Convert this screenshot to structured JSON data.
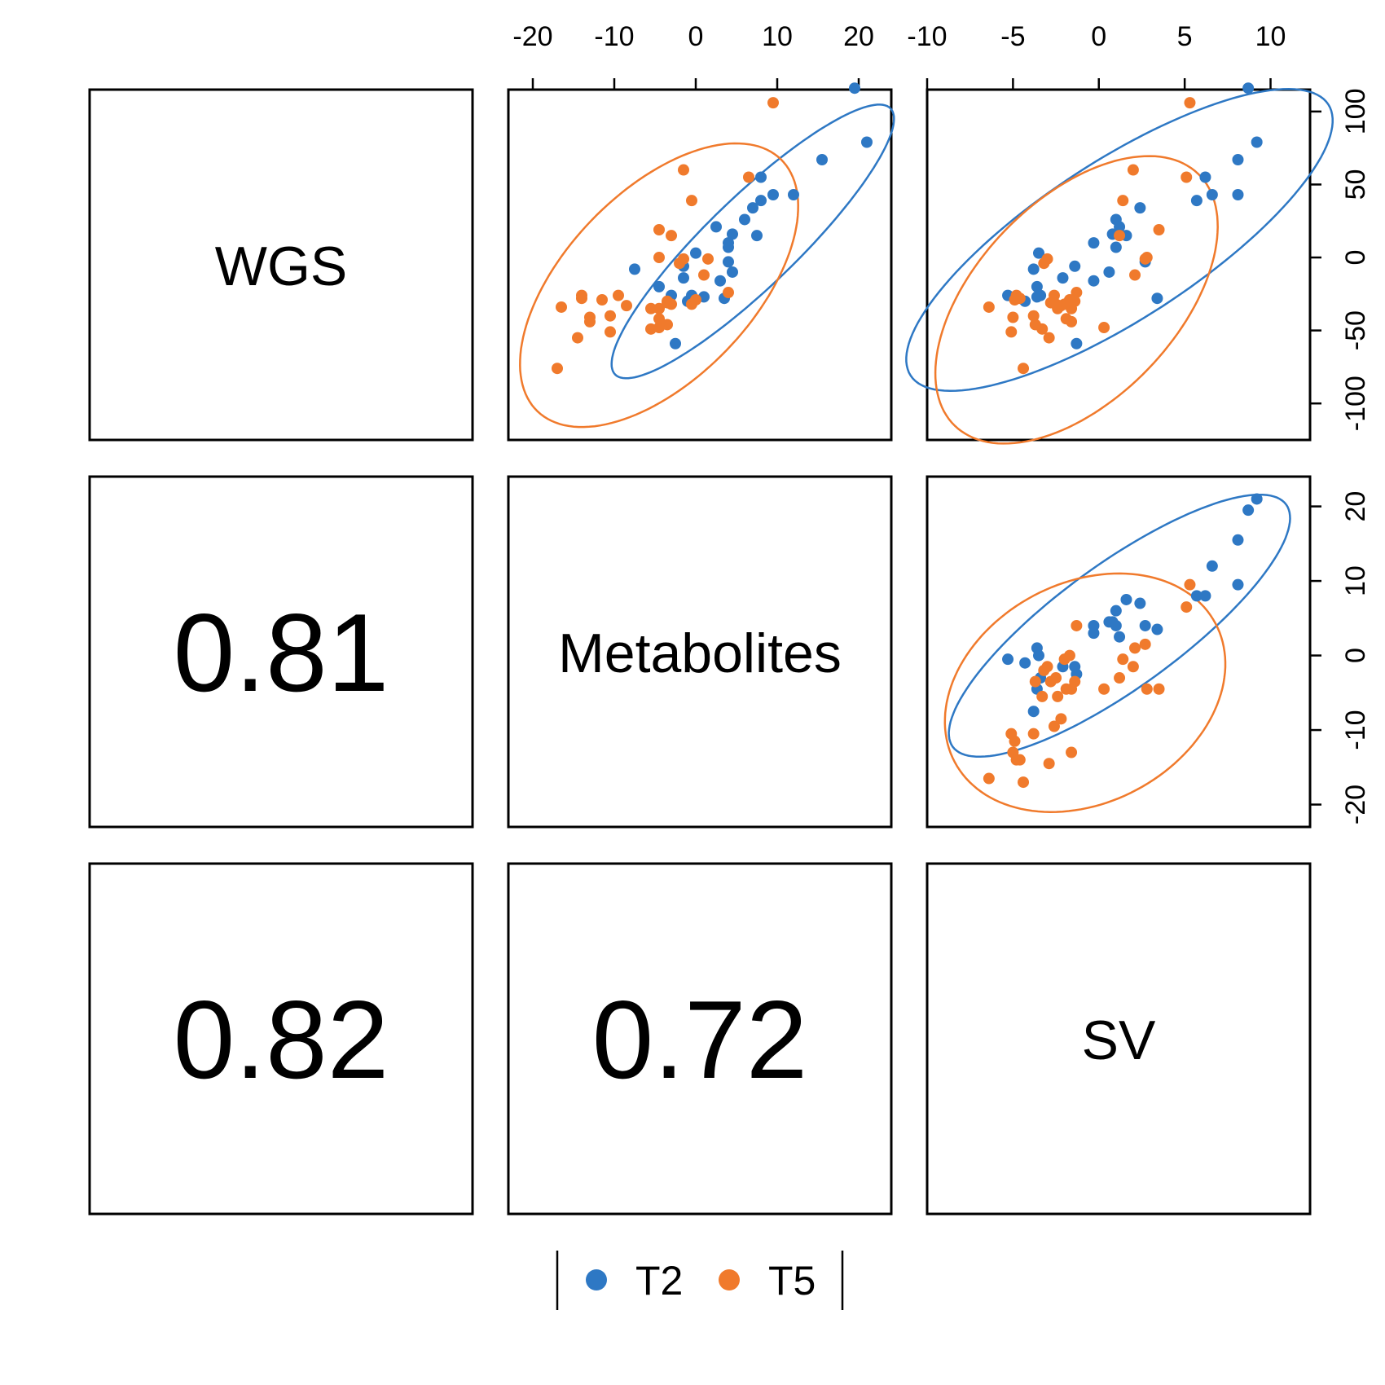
{
  "chart_data": {
    "type": "scatter",
    "variables": [
      "WGS",
      "Metabolites",
      "SV"
    ],
    "series": [
      {
        "name": "T2",
        "color": "#2E78C4"
      },
      {
        "name": "T5",
        "color": "#F07A2C"
      }
    ],
    "axes": {
      "WGS": {
        "range": [
          -125,
          115
        ],
        "ticks": [
          "100",
          "50",
          "0",
          "-50",
          "-100"
        ],
        "tick_values": [
          100,
          50,
          0,
          -50,
          -100
        ]
      },
      "Metabolites": {
        "range": [
          -23,
          24
        ],
        "ticks": [
          "-20",
          "-10",
          "0",
          "10",
          "20"
        ],
        "tick_values": [
          -20,
          -10,
          0,
          10,
          20
        ]
      },
      "SV": {
        "range": [
          -10,
          12.3
        ],
        "ticks": [
          "-10",
          "-5",
          "0",
          "5",
          "10"
        ],
        "tick_values": [
          -10,
          -5,
          0,
          5,
          10
        ]
      }
    },
    "correlations": [
      {
        "row": "Metabolites",
        "col": "WGS",
        "value": "0.81"
      },
      {
        "row": "SV",
        "col": "WGS",
        "value": "0.82"
      },
      {
        "row": "SV",
        "col": "Metabolites",
        "value": "0.72"
      }
    ],
    "points": {
      "T2": [
        {
          "met": 19.5,
          "wgs": 116,
          "sv": 8.7
        },
        {
          "met": 21.0,
          "wgs": 79,
          "sv": 9.2
        },
        {
          "met": 15.5,
          "wgs": 67,
          "sv": 8.1
        },
        {
          "met": 8.0,
          "wgs": 55,
          "sv": 6.2
        },
        {
          "met": 9.5,
          "wgs": 43,
          "sv": 8.1
        },
        {
          "met": 12.0,
          "wgs": 43,
          "sv": 6.6
        },
        {
          "met": 8.0,
          "wgs": 39,
          "sv": 5.7
        },
        {
          "met": 7.0,
          "wgs": 34,
          "sv": 2.4
        },
        {
          "met": 6.0,
          "wgs": 26,
          "sv": 1.0
        },
        {
          "met": 2.5,
          "wgs": 21,
          "sv": 1.2
        },
        {
          "met": 4.5,
          "wgs": 16,
          "sv": 0.8
        },
        {
          "met": 7.5,
          "wgs": 15,
          "sv": 1.6
        },
        {
          "met": 4.0,
          "wgs": 10,
          "sv": -0.3
        },
        {
          "met": 4.0,
          "wgs": 7,
          "sv": 1.0
        },
        {
          "met": 0.0,
          "wgs": 3,
          "sv": -3.5
        },
        {
          "met": 4.0,
          "wgs": -3,
          "sv": 2.7
        },
        {
          "met": -1.5,
          "wgs": -6,
          "sv": -1.4
        },
        {
          "met": 4.5,
          "wgs": -10,
          "sv": 0.6
        },
        {
          "met": -7.5,
          "wgs": -8,
          "sv": -3.8
        },
        {
          "met": -1.5,
          "wgs": -14,
          "sv": -2.1
        },
        {
          "met": 3.0,
          "wgs": -16,
          "sv": -0.3
        },
        {
          "met": -4.5,
          "wgs": -20,
          "sv": -3.6
        },
        {
          "met": -3.0,
          "wgs": -26,
          "sv": -3.4
        },
        {
          "met": 1.0,
          "wgs": -27,
          "sv": -3.6
        },
        {
          "met": -1.0,
          "wgs": -30,
          "sv": -4.3
        },
        {
          "met": -0.5,
          "wgs": -26,
          "sv": -5.3
        },
        {
          "met": -2.5,
          "wgs": -59,
          "sv": -1.3
        },
        {
          "met": 3.5,
          "wgs": -28,
          "sv": 3.4
        }
      ],
      "T5": [
        {
          "met": 9.5,
          "wgs": 106,
          "sv": 5.3
        },
        {
          "met": 6.5,
          "wgs": 55,
          "sv": 5.1
        },
        {
          "met": -1.5,
          "wgs": 60,
          "sv": 2.0
        },
        {
          "met": -0.5,
          "wgs": 39,
          "sv": 1.4
        },
        {
          "met": -4.5,
          "wgs": 19,
          "sv": 3.5
        },
        {
          "met": -3.0,
          "wgs": 15,
          "sv": 1.2
        },
        {
          "met": -4.5,
          "wgs": 0,
          "sv": 2.8
        },
        {
          "met": -1.5,
          "wgs": -1,
          "sv": -3.0
        },
        {
          "met": -2.0,
          "wgs": -4,
          "sv": -3.2
        },
        {
          "met": 1.0,
          "wgs": -12,
          "sv": 2.1
        },
        {
          "met": -16.5,
          "wgs": -34,
          "sv": -6.4
        },
        {
          "met": -14.0,
          "wgs": -26,
          "sv": -4.8
        },
        {
          "met": -14.0,
          "wgs": -28,
          "sv": -4.6
        },
        {
          "met": -11.5,
          "wgs": -29,
          "sv": -4.9
        },
        {
          "met": -9.5,
          "wgs": -26,
          "sv": -2.6
        },
        {
          "met": -8.5,
          "wgs": -33,
          "sv": -2.2
        },
        {
          "met": -13.0,
          "wgs": -41,
          "sv": -5.0
        },
        {
          "met": -10.5,
          "wgs": -40,
          "sv": -3.8
        },
        {
          "met": -10.5,
          "wgs": -51,
          "sv": -5.1
        },
        {
          "met": -5.5,
          "wgs": -49,
          "sv": -3.3
        },
        {
          "met": -4.5,
          "wgs": -35,
          "sv": -1.6
        },
        {
          "met": -3.5,
          "wgs": -30,
          "sv": -1.4
        },
        {
          "met": -4.5,
          "wgs": -42,
          "sv": -1.9
        },
        {
          "met": -3.5,
          "wgs": -46,
          "sv": -3.7
        },
        {
          "met": -0.5,
          "wgs": -32,
          "sv": -2.0
        },
        {
          "met": -3.5,
          "wgs": -31,
          "sv": -2.8
        },
        {
          "met": -5.5,
          "wgs": -35,
          "sv": -2.4
        },
        {
          "met": 4.0,
          "wgs": -24,
          "sv": -1.3
        },
        {
          "met": -17.0,
          "wgs": -76,
          "sv": -4.4
        },
        {
          "met": -14.5,
          "wgs": -55,
          "sv": -2.9
        },
        {
          "met": -13.0,
          "wgs": -44,
          "sv": -1.6
        },
        {
          "met": 0.0,
          "wgs": -29,
          "sv": -1.7
        },
        {
          "met": -3.0,
          "wgs": -32,
          "sv": -2.5
        },
        {
          "met": -4.5,
          "wgs": -48,
          "sv": 0.3
        },
        {
          "met": 1.5,
          "wgs": -1,
          "sv": 2.7
        }
      ]
    },
    "ellipses": {
      "WGS_vs_Metabolites": [
        {
          "series": "T2",
          "cx": 7.0,
          "cy": 11,
          "a": 23.5,
          "b": 5.5,
          "angle_deg": 44
        },
        {
          "series": "T5",
          "cx": -4.5,
          "cy": -19,
          "a": 21.5,
          "b": 11.5,
          "angle_deg": 46
        }
      ],
      "WGS_vs_SV": [
        {
          "series": "T2",
          "cx": 1.2,
          "cy": 12,
          "a": 14.5,
          "b": 4.6,
          "angle_deg": 33
        },
        {
          "series": "T5",
          "cx": -1.3,
          "cy": -29,
          "a": 10.2,
          "b": 5.8,
          "angle_deg": 46
        }
      ],
      "Metabolites_vs_SV": [
        {
          "series": "T2",
          "cx": 1.2,
          "cy": 4,
          "a": 12.0,
          "b": 3.6,
          "angle_deg": 36
        },
        {
          "series": "T5",
          "cx": -0.8,
          "cy": -5,
          "a": 8.6,
          "b": 6.4,
          "angle_deg": 28
        }
      ]
    },
    "legend": {
      "items": [
        "T2",
        "T5"
      ],
      "placement": "bottom-center"
    }
  }
}
